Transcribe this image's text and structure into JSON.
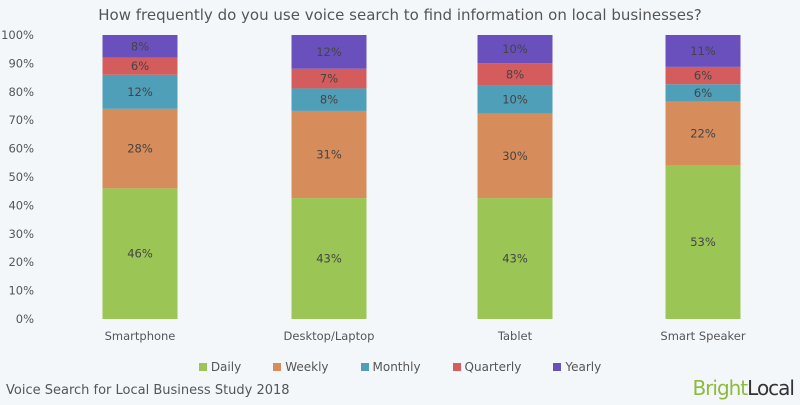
{
  "chart_data": {
    "type": "bar",
    "stacked": true,
    "title": "How frequently do you use voice search to find information on local businesses?",
    "categories": [
      "Smartphone",
      "Desktop/Laptop",
      "Tablet",
      "Smart Speaker"
    ],
    "series": [
      {
        "name": "Daily",
        "color": "#9bc655",
        "values": [
          46,
          43,
          43,
          53
        ]
      },
      {
        "name": "Weekly",
        "color": "#d68c5b",
        "values": [
          28,
          31,
          30,
          22
        ]
      },
      {
        "name": "Monthly",
        "color": "#4f9fb8",
        "values": [
          12,
          8,
          10,
          6
        ]
      },
      {
        "name": "Quarterly",
        "color": "#d45c5c",
        "values": [
          6,
          7,
          8,
          6
        ]
      },
      {
        "name": "Yearly",
        "color": "#6a50bc",
        "values": [
          8,
          12,
          10,
          11
        ]
      }
    ],
    "ylim": [
      0,
      100
    ],
    "yticks": [
      "0%",
      "10%",
      "20%",
      "30%",
      "40%",
      "50%",
      "60%",
      "70%",
      "80%",
      "90%",
      "100%"
    ],
    "grid": false,
    "legend": "bottom"
  },
  "footer": "Voice Search for Local Business Study 2018",
  "logo": {
    "bright": "Bright",
    "local": "Local",
    "bright_color": "#8dbb3c",
    "local_color": "#333333"
  }
}
